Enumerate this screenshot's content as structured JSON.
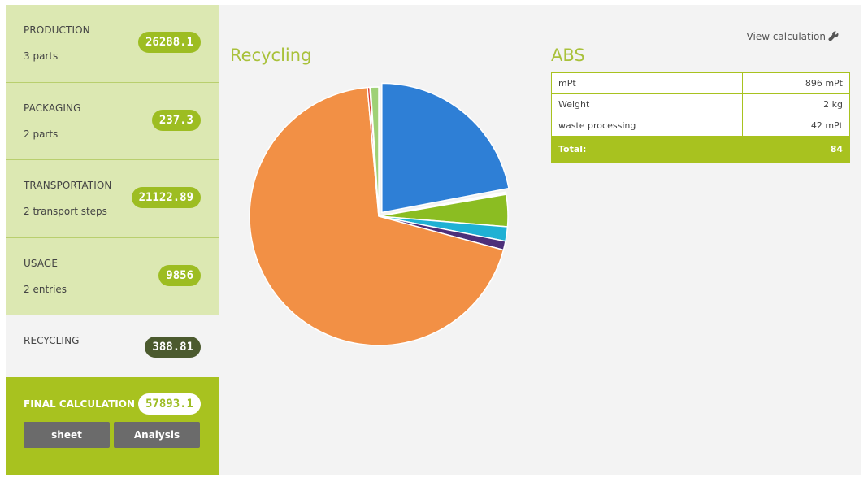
{
  "sidebar": {
    "items": [
      {
        "title": "PRODUCTION",
        "sub": "3 parts",
        "value": "26288.1"
      },
      {
        "title": "PACKAGING",
        "sub": "2 parts",
        "value": "237.3"
      },
      {
        "title": "TRANSPORTATION",
        "sub": "2 transport steps",
        "value": "21122.89"
      },
      {
        "title": "USAGE",
        "sub": "2 entries",
        "value": "9856"
      },
      {
        "title": "RECYCLING",
        "sub": "",
        "value": "388.81"
      }
    ],
    "final": {
      "title": "FINAL CALCULATION",
      "value": "57893.1",
      "buttons": [
        "sheet",
        "Analysis"
      ]
    }
  },
  "main": {
    "recycling_title": "Recycling",
    "detail_title": "ABS",
    "view_calc": "View calculation",
    "table": {
      "rows": [
        {
          "label": "mPt",
          "value": "896 mPt"
        },
        {
          "label": "Weight",
          "value": "2 kg"
        },
        {
          "label": "waste processing",
          "value": "42 mPt"
        }
      ],
      "total_label": "Total:",
      "total_value": "84"
    }
  },
  "chart_data": {
    "type": "pie",
    "title": "",
    "exploded_slice_index": 0,
    "slices": [
      {
        "value": 22.0,
        "color": "#2e7fd6"
      },
      {
        "value": 0.3,
        "color": "#ffffff"
      },
      {
        "value": 4.0,
        "color": "#8bbd22"
      },
      {
        "value": 1.8,
        "color": "#1fb1d4"
      },
      {
        "value": 1.1,
        "color": "#4c2f7a"
      },
      {
        "value": 69.4,
        "color": "#f29045"
      },
      {
        "value": 0.3,
        "color": "#d6372b"
      },
      {
        "value": 0.1,
        "color": "#ffffff"
      },
      {
        "value": 1.0,
        "color": "#9fd176"
      }
    ]
  }
}
